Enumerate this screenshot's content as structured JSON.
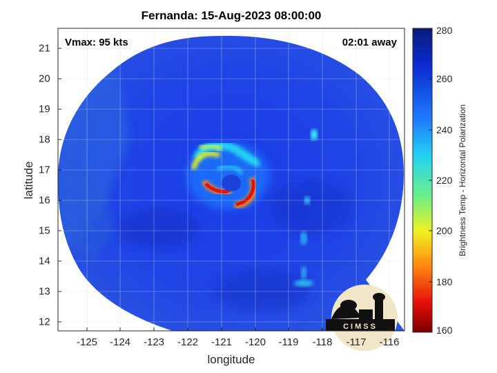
{
  "title": "Fernanda: 15-Aug-2023 08:00:00",
  "vmax": "Vmax: 95 kts",
  "time_away": "02:01 away",
  "xlabel": "longitude",
  "ylabel": "latitude",
  "colorbar_label": "Brightness Temp - Horizontal Polarization",
  "x_ticks": [
    "-125",
    "-124",
    "-123",
    "-122",
    "-121",
    "-120",
    "-119",
    "-118",
    "-117",
    "-116"
  ],
  "y_ticks": [
    "21",
    "20",
    "19",
    "18",
    "17",
    "16",
    "15",
    "14",
    "13",
    "12"
  ],
  "colorbar_ticks": [
    "280",
    "260",
    "240",
    "220",
    "200",
    "180",
    "160"
  ],
  "logo_text": "CIMSS",
  "colors": {
    "background_scan": "#1e3fe0",
    "low_temp": "#8b0000",
    "high_temp": "#0a1a7a"
  }
}
